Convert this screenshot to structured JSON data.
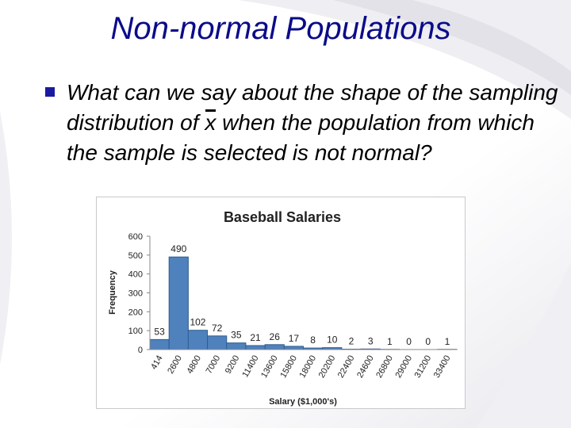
{
  "slide": {
    "title": "Non-normal Populations",
    "bullet_before": "What can we say about the shape of the sampling distribution of ",
    "bullet_symbol": "x",
    "bullet_after": " when the population from which the sample is selected is not normal?",
    "colors": {
      "title": "#0b0b8a",
      "bullet_marker": "#1a1aa0",
      "bar_fill": "#4f81bd",
      "bar_stroke": "#2f5d8f"
    },
    "bullet_icon": "square-bullet-icon"
  },
  "chart_data": {
    "type": "bar",
    "title": "Baseball Salaries",
    "xlabel": "Salary ($1,000's)",
    "ylabel": "Frequency",
    "categories": [
      "414",
      "2600",
      "4800",
      "7000",
      "9200",
      "11400",
      "13600",
      "15800",
      "18000",
      "20200",
      "22400",
      "24600",
      "26800",
      "29000",
      "31200",
      "33400"
    ],
    "values": [
      53,
      490,
      102,
      72,
      35,
      21,
      26,
      17,
      8,
      10,
      2,
      3,
      1,
      0,
      0,
      1
    ],
    "data_labels": [
      "53",
      "490",
      "102",
      "72",
      "35",
      "21",
      "26",
      "17",
      "8",
      "10",
      "2",
      "3",
      "1",
      "0",
      "0",
      "1"
    ],
    "ylim": [
      0,
      600
    ],
    "yticks": [
      0,
      100,
      200,
      300,
      400,
      500,
      600
    ],
    "ytick_labels": [
      "0",
      "100",
      "200",
      "300",
      "400",
      "500",
      "600"
    ],
    "grid": false,
    "legend": "none"
  }
}
